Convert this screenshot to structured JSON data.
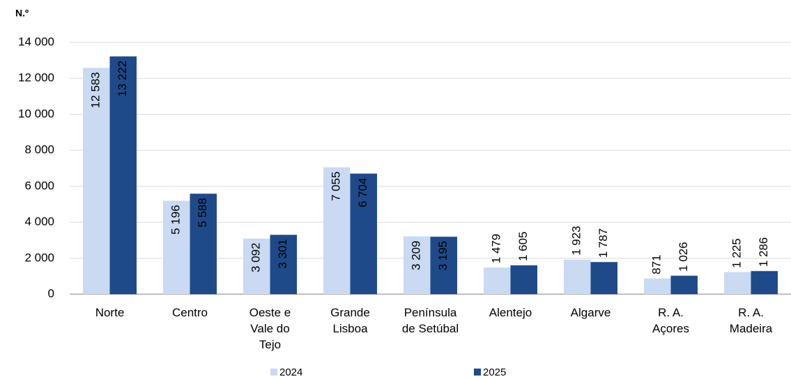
{
  "chart_data": {
    "type": "bar",
    "title": "N.º",
    "categories": [
      "Norte",
      "Centro",
      "Oeste e Vale do Tejo",
      "Grande Lisboa",
      "Península de Setúbal",
      "Alentejo",
      "Algarve",
      "R. A. Açores",
      "R. A. Madeira"
    ],
    "series": [
      {
        "name": "2024",
        "color": "#c9daf2",
        "label_color": "#1f4a8a",
        "values": [
          12583,
          5196,
          3092,
          7055,
          3209,
          1479,
          1923,
          871,
          1225
        ],
        "value_labels": [
          "12 583",
          "5 196",
          "3 092",
          "7 055",
          "3 209",
          "1 479",
          "1 923",
          "871",
          "1 225"
        ]
      },
      {
        "name": "2025",
        "color": "#1f4a8a",
        "label_color": "#ffffff",
        "values": [
          13222,
          5588,
          3301,
          6704,
          3195,
          1605,
          1787,
          1026,
          1286
        ],
        "value_labels": [
          "13 222",
          "5 588",
          "3 301",
          "6 704",
          "3 195",
          "1 605",
          "1 787",
          "1 026",
          "1 286"
        ]
      }
    ],
    "ylim": [
      0,
      14000
    ],
    "yticks": [
      0,
      {
        "value": 2000,
        "label": "2 000"
      },
      {
        "value": 4000,
        "label": "4 000"
      },
      {
        "value": 6000,
        "label": "6 000"
      },
      {
        "value": 8000,
        "label": "8 000"
      },
      {
        "value": 10000,
        "label": "10 000"
      },
      {
        "value": 12000,
        "label": "12 000"
      },
      {
        "value": 14000,
        "label": "14 000"
      }
    ],
    "grid": true,
    "legend": "bottom"
  }
}
